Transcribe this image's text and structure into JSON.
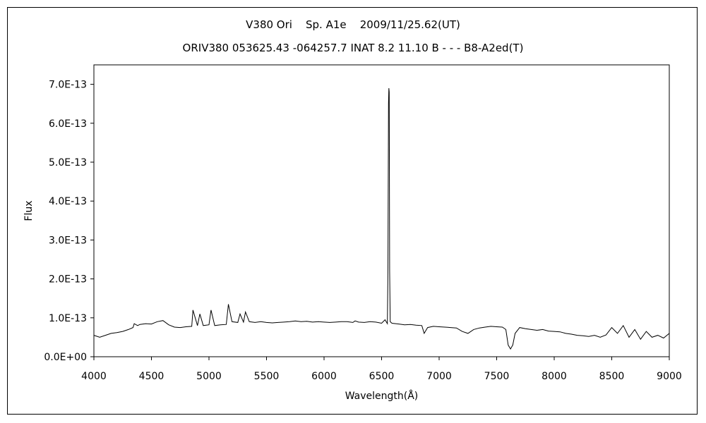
{
  "chart_data": {
    "type": "line",
    "title": "V380 Ori    Sp. A1e    2009/11/25.62(UT)",
    "subtitle": "ORIV380 053625.43 -064257.7 INAT 8.2 11.10 B - - - B8-A2ed(T)",
    "xlabel": "Wavelength(Å)",
    "ylabel": "Flux",
    "xlim": [
      4000,
      9000
    ],
    "ylim": [
      0,
      7.5e-13
    ],
    "grid": false,
    "legend": "none",
    "x_ticks": [
      4000,
      4500,
      5000,
      5500,
      6000,
      6500,
      7000,
      7500,
      8000,
      8500,
      9000
    ],
    "x_tick_labels": [
      "4000",
      "4500",
      "5000",
      "5500",
      "6000",
      "6500",
      "7000",
      "7500",
      "8000",
      "8500",
      "9000"
    ],
    "y_ticks": [
      0,
      1e-13,
      2e-13,
      3e-13,
      4e-13,
      5e-13,
      6e-13,
      7e-13
    ],
    "y_tick_labels": [
      "0.0E+00",
      "1.0E-13",
      "2.0E-13",
      "3.0E-13",
      "4.0E-13",
      "5.0E-13",
      "6.0E-13",
      "7.0E-13"
    ],
    "series": [
      {
        "color": "#000000",
        "x": [
          4000,
          4050,
          4100,
          4150,
          4200,
          4250,
          4300,
          4340,
          4350,
          4380,
          4400,
          4450,
          4500,
          4550,
          4600,
          4650,
          4700,
          4750,
          4800,
          4850,
          4861,
          4900,
          4921,
          4950,
          5000,
          5018,
          5050,
          5100,
          5150,
          5169,
          5200,
          5250,
          5270,
          5300,
          5317,
          5350,
          5400,
          5450,
          5500,
          5550,
          5600,
          5650,
          5700,
          5750,
          5800,
          5850,
          5900,
          5950,
          6000,
          6050,
          6100,
          6150,
          6200,
          6250,
          6270,
          6300,
          6350,
          6400,
          6450,
          6500,
          6530,
          6550,
          6555,
          6560,
          6563,
          6566,
          6570,
          6575,
          6590,
          6650,
          6700,
          6750,
          6800,
          6850,
          6870,
          6900,
          6950,
          7000,
          7050,
          7100,
          7150,
          7200,
          7250,
          7300,
          7350,
          7400,
          7450,
          7500,
          7550,
          7580,
          7600,
          7620,
          7640,
          7660,
          7700,
          7750,
          7800,
          7850,
          7900,
          7950,
          8000,
          8050,
          8100,
          8150,
          8200,
          8250,
          8300,
          8350,
          8400,
          8450,
          8500,
          8550,
          8600,
          8650,
          8700,
          8750,
          8800,
          8850,
          8900,
          8950,
          9000
        ],
        "y": [
          5.5e-14,
          5e-14,
          5.5e-14,
          6e-14,
          6.2e-14,
          6.5e-14,
          7e-14,
          7.5e-14,
          8.5e-14,
          8e-14,
          8.3e-14,
          8.5e-14,
          8.4e-14,
          9e-14,
          9.3e-14,
          8.2e-14,
          7.6e-14,
          7.5e-14,
          7.7e-14,
          7.8e-14,
          1.2e-13,
          8e-14,
          1.1e-13,
          8e-14,
          8.2e-14,
          1.2e-13,
          8e-14,
          8.2e-14,
          8.3e-14,
          1.35e-13,
          9e-14,
          8.8e-14,
          1.1e-13,
          8.9e-14,
          1.15e-13,
          9e-14,
          8.8e-14,
          9e-14,
          8.8e-14,
          8.7e-14,
          8.8e-14,
          8.9e-14,
          9e-14,
          9.2e-14,
          9e-14,
          9.1e-14,
          8.9e-14,
          9e-14,
          8.9e-14,
          8.8e-14,
          8.9e-14,
          9e-14,
          9e-14,
          8.8e-14,
          9.2e-14,
          8.9e-14,
          8.8e-14,
          9e-14,
          8.9e-14,
          8.6e-14,
          9.5e-14,
          8.5e-14,
          2.3e-13,
          6.5e-13,
          6.9e-13,
          6.8e-13,
          2.2e-13,
          9e-14,
          8.6e-14,
          8.4e-14,
          8.2e-14,
          8.3e-14,
          8.1e-14,
          8e-14,
          6e-14,
          7.5e-14,
          7.8e-14,
          7.7e-14,
          7.6e-14,
          7.5e-14,
          7.4e-14,
          6.5e-14,
          6e-14,
          7e-14,
          7.4e-14,
          7.6e-14,
          7.8e-14,
          7.7e-14,
          7.6e-14,
          7e-14,
          3e-14,
          2e-14,
          3e-14,
          6e-14,
          7.5e-14,
          7.2e-14,
          7e-14,
          6.8e-14,
          7e-14,
          6.6e-14,
          6.5e-14,
          6.4e-14,
          6e-14,
          5.8e-14,
          5.5e-14,
          5.4e-14,
          5.2e-14,
          5.5e-14,
          5e-14,
          5.6e-14,
          7.5e-14,
          6e-14,
          8e-14,
          5e-14,
          7e-14,
          4.5e-14,
          6.5e-14,
          5e-14,
          5.5e-14,
          4.8e-14,
          6e-14
        ]
      }
    ]
  }
}
